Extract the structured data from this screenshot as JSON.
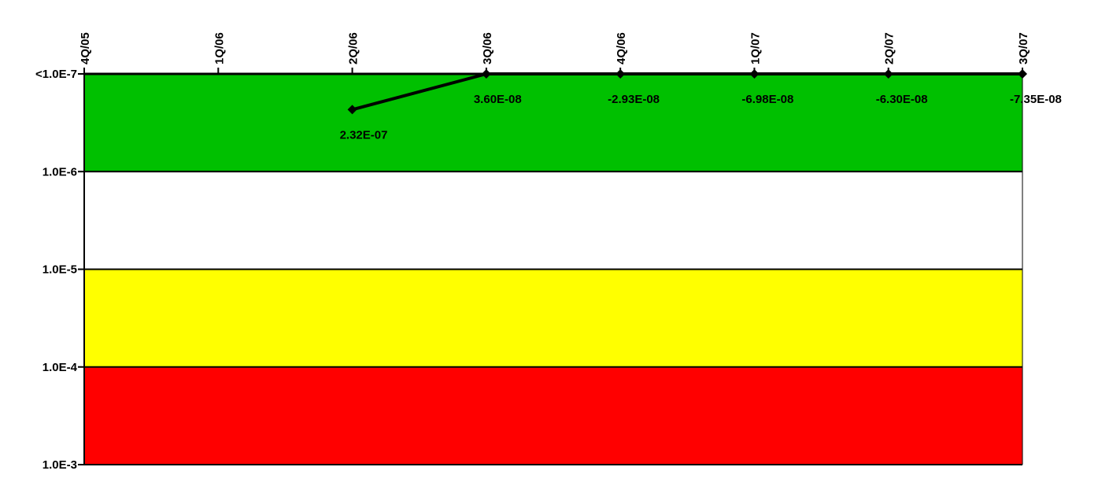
{
  "chart_data": {
    "type": "line",
    "x_categories": [
      "4Q/05",
      "1Q/06",
      "2Q/06",
      "3Q/06",
      "4Q/06",
      "1Q/07",
      "2Q/07",
      "3Q/07"
    ],
    "y_scale": "log",
    "y_direction": "inverted",
    "y_tick_labels": [
      "<1.0E-7",
      "1.0E-6",
      "1.0E-5",
      "1.0E-4",
      "1.0E-3"
    ],
    "y_tick_values": [
      1e-07,
      1e-06,
      1e-05,
      0.0001,
      0.001
    ],
    "ylim": [
      1e-07,
      0.001
    ],
    "bands": [
      {
        "from": 1e-07,
        "to": 1e-06,
        "color": "#00c000"
      },
      {
        "from": 1e-06,
        "to": 1e-05,
        "color": "#ffffff"
      },
      {
        "from": 1e-05,
        "to": 0.0001,
        "color": "#ffff00"
      },
      {
        "from": 0.0001,
        "to": 0.001,
        "color": "#ff0000"
      }
    ],
    "series": [
      {
        "points": [
          {
            "x": "2Q/06",
            "y": 2.32e-07,
            "label": "2.32E-07"
          },
          {
            "x": "3Q/06",
            "y": 3.6e-08,
            "label": "3.60E-08"
          },
          {
            "x": "4Q/06",
            "y": -2.93e-08,
            "label": "-2.93E-08"
          },
          {
            "x": "1Q/07",
            "y": -6.98e-08,
            "label": "-6.98E-08"
          },
          {
            "x": "2Q/07",
            "y": -6.3e-08,
            "label": "-6.30E-08"
          },
          {
            "x": "3Q/07",
            "y": -7.35e-08,
            "label": "-7.35E-08"
          }
        ],
        "color": "#000000"
      }
    ]
  }
}
